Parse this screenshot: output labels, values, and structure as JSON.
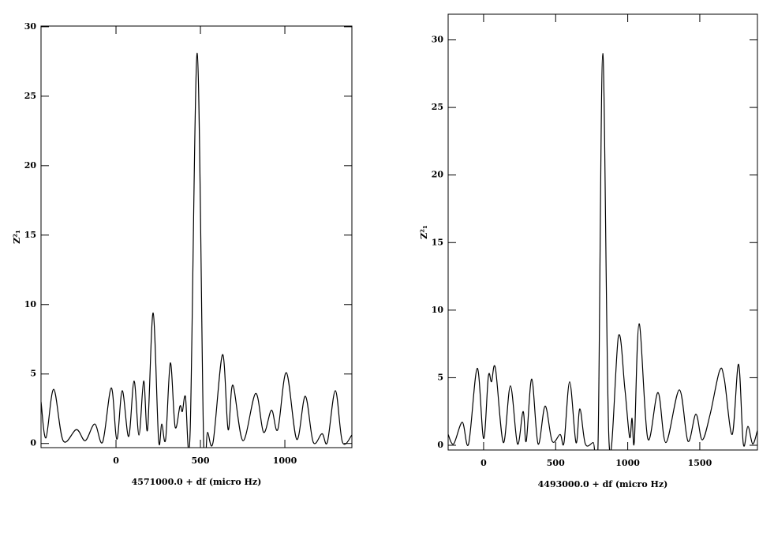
{
  "chart_data": [
    {
      "type": "line",
      "xlabel": "4571000.0 + df (micro Hz)",
      "ylabel": "Z²₁",
      "xlim": [
        -444,
        1397
      ],
      "ylim": [
        -0.3,
        30.05
      ],
      "xticks": [
        0,
        500,
        1000
      ],
      "yticks": [
        0,
        5,
        10,
        15,
        20,
        25,
        30
      ],
      "series": [
        {
          "color": "#000000",
          "x": [
            -444,
            -415,
            -369,
            -313,
            -234,
            -182,
            -126,
            -79,
            -28,
            5,
            37,
            75,
            107,
            136,
            164,
            187,
            220,
            252,
            271,
            294,
            322,
            350,
            379,
            393,
            411,
            439,
            481,
            519,
            542,
            575,
            631,
            664,
            692,
            752,
            827,
            874,
            921,
            958,
            1009,
            1070,
            1121,
            1168,
            1220,
            1252,
            1299,
            1341,
            1397
          ],
          "values": [
            3,
            0.4,
            3.9,
            0.2,
            1.0,
            0.2,
            1.4,
            0.1,
            4.0,
            0.3,
            3.8,
            0.5,
            4.5,
            0.6,
            4.5,
            1.0,
            9.4,
            0.3,
            1.4,
            0.3,
            5.8,
            1.2,
            2.7,
            2.3,
            3.4,
            0.8,
            28.1,
            0.1,
            0.8,
            0.1,
            6.4,
            1.0,
            4.2,
            0.2,
            3.6,
            0.8,
            2.4,
            1.0,
            5.1,
            0.3,
            3.4,
            0.1,
            0.7,
            0.1,
            3.8,
            0.1,
            0.6
          ]
        }
      ]
    },
    {
      "type": "line",
      "xlabel": "4493000.0 + df (micro Hz)",
      "ylabel": "Z²₁",
      "xlim": [
        -246,
        1900
      ],
      "ylim": [
        -0.35,
        31.9
      ],
      "xticks": [
        0,
        500,
        1000,
        1500
      ],
      "yticks": [
        0,
        5,
        10,
        15,
        20,
        25,
        30
      ],
      "series": [
        {
          "color": "#000000",
          "x": [
            -246,
            -208,
            -148,
            -104,
            -44,
            0,
            33,
            55,
            82,
            137,
            186,
            235,
            274,
            296,
            334,
            378,
            427,
            476,
            531,
            558,
            597,
            641,
            668,
            706,
            761,
            794,
            827,
            871,
            936,
            980,
            1013,
            1030,
            1046,
            1079,
            1139,
            1210,
            1265,
            1358,
            1418,
            1473,
            1517,
            1572,
            1637,
            1670,
            1725,
            1769,
            1802,
            1834,
            1867,
            1900
          ],
          "values": [
            0.8,
            0.1,
            1.7,
            0.1,
            5.7,
            0.5,
            5.1,
            4.7,
            5.7,
            0.2,
            4.4,
            0.1,
            2.5,
            0.3,
            4.9,
            0.1,
            2.9,
            0.3,
            0.8,
            0.2,
            4.7,
            0.2,
            2.7,
            0.1,
            0.2,
            0.05,
            29,
            0.1,
            8.1,
            4.2,
            0.6,
            2.0,
            0.3,
            9.0,
            0.5,
            3.9,
            0.2,
            4.1,
            0.3,
            2.3,
            0.4,
            2.3,
            5.5,
            4.9,
            0.8,
            6.0,
            0.1,
            1.4,
            0.1,
            1.1
          ]
        }
      ]
    }
  ]
}
